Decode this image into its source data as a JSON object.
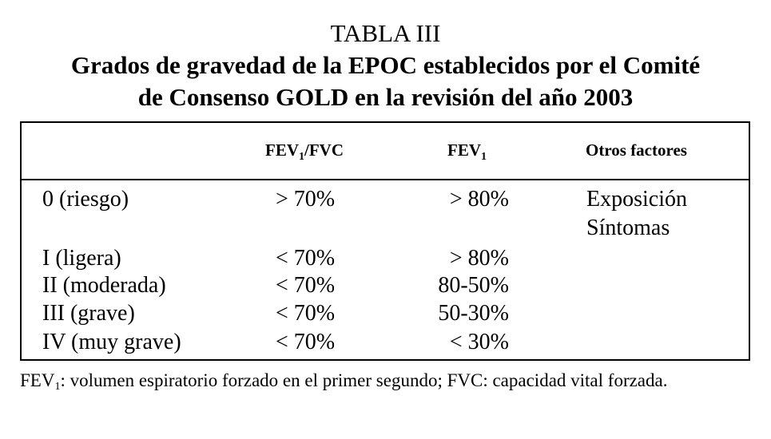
{
  "table_number": "TABLA III",
  "title_lines": [
    "Grados de gravedad de la EPOC establecidos por el Comité",
    "de Consenso GOLD en la revisión del año 2003"
  ],
  "headers": {
    "ratio_main": "FEV",
    "ratio_sub": "1",
    "ratio_tail": "/FVC",
    "fev_main": "FEV",
    "fev_sub": "1",
    "other": "Otros factores"
  },
  "rows": [
    {
      "grade": "0 (riesgo)",
      "ratio": "> 70%",
      "fev": "> 80%",
      "other": [
        "Exposición",
        "Síntomas"
      ]
    },
    {
      "grade": "I (ligera)",
      "ratio": "< 70%",
      "fev": "> 80%",
      "other": []
    },
    {
      "grade": "II (moderada)",
      "ratio": "< 70%",
      "fev": "80-50%",
      "other": []
    },
    {
      "grade": "III (grave)",
      "ratio": "< 70%",
      "fev": "50-30%",
      "other": []
    },
    {
      "grade": "IV (muy grave)",
      "ratio": "< 70%",
      "fev": "< 30%",
      "other": []
    }
  ],
  "footnote": {
    "abbr_main": "FEV",
    "abbr_sub": "1",
    "text": ": volumen espiratorio forzado en el primer segundo; FVC: capacidad vital forzada."
  }
}
